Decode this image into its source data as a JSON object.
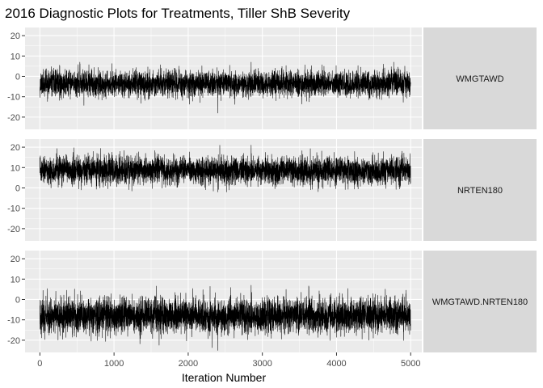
{
  "chart_data": {
    "type": "line",
    "title": "2016 Diagnostic Plots for Treatments, Tiller ShB Severity",
    "xlabel": "Iteration Number",
    "ylabel": "",
    "xlim": [
      -200,
      5150
    ],
    "ylim": [
      -26,
      24
    ],
    "x_ticks": [
      0,
      1000,
      2000,
      3000,
      4000,
      5000
    ],
    "y_ticks": [
      -20,
      -10,
      0,
      10,
      20
    ],
    "x_tick_labels": [
      "0",
      "1000",
      "2000",
      "3000",
      "4000",
      "5000"
    ],
    "y_tick_labels": [
      "-20",
      "-10",
      "0",
      "10",
      "20"
    ],
    "grid": true,
    "facet_layout": "rows",
    "strip_position": "right",
    "line_color": "#000000",
    "panel_background": "#ebebeb",
    "strip_background": "#d9d9d9",
    "iterations": 5000,
    "series": [
      {
        "name": "WMGTAWD",
        "mean": -3.5,
        "sd": 3.1,
        "observed_min": -18,
        "observed_max": 7,
        "seed": 11
      },
      {
        "name": "NRTEN180",
        "mean": 8.5,
        "sd": 3.3,
        "observed_min": -2,
        "observed_max": 21,
        "seed": 23
      },
      {
        "name": "WMGTAWD.NRTEN180",
        "mean": -8,
        "sd": 4.3,
        "observed_min": -25,
        "observed_max": 7,
        "seed": 37
      }
    ]
  }
}
